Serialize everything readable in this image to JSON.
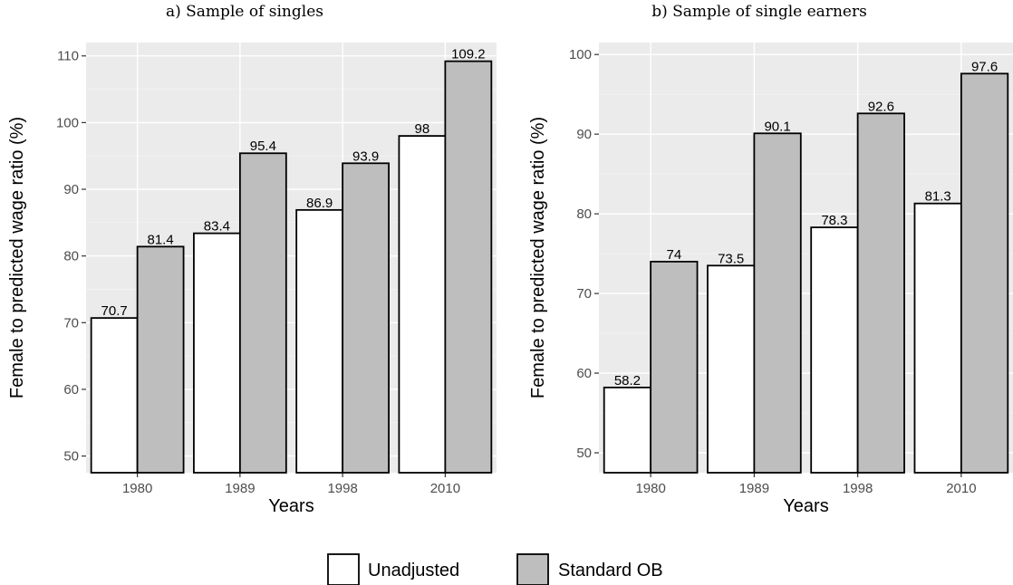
{
  "chart_data": [
    {
      "type": "bar",
      "title": "a) Sample of singles",
      "xlabel": "Years",
      "ylabel": "Female to predicted wage ratio (%)",
      "categories": [
        "1980",
        "1989",
        "1998",
        "2010"
      ],
      "yticks": [
        50,
        60,
        70,
        80,
        90,
        100,
        110
      ],
      "ylim": [
        47.5,
        112
      ],
      "series": [
        {
          "name": "Unadjusted",
          "values": [
            70.7,
            83.4,
            86.9,
            98
          ],
          "labels": [
            "70.7",
            "83.4",
            "86.9",
            "98"
          ]
        },
        {
          "name": "Standard OB",
          "values": [
            81.4,
            95.4,
            93.9,
            109.2
          ],
          "labels": [
            "81.4",
            "95.4",
            "93.9",
            "109.2"
          ]
        }
      ],
      "grid": true
    },
    {
      "type": "bar",
      "title": "b) Sample of single earners",
      "xlabel": "Years",
      "ylabel": "Female to predicted wage ratio (%)",
      "categories": [
        "1980",
        "1989",
        "1998",
        "2010"
      ],
      "yticks": [
        50,
        60,
        70,
        80,
        90,
        100
      ],
      "ylim": [
        47.5,
        101.5
      ],
      "series": [
        {
          "name": "Unadjusted",
          "values": [
            58.2,
            73.5,
            78.3,
            81.3
          ],
          "labels": [
            "58.2",
            "73.5",
            "78.3",
            "81.3"
          ]
        },
        {
          "name": "Standard OB",
          "values": [
            74,
            90.1,
            92.6,
            97.6
          ],
          "labels": [
            "74",
            "90.1",
            "92.6",
            "97.6"
          ]
        }
      ],
      "grid": true
    }
  ],
  "legend": {
    "position": "bottom",
    "items": [
      {
        "label": "Unadjusted",
        "color": "#ffffff"
      },
      {
        "label": "Standard OB",
        "color": "#bebebe"
      }
    ]
  },
  "colors": {
    "unadjusted": "#ffffff",
    "standard_ob": "#bebebe",
    "panel_bg": "#ebebeb"
  }
}
